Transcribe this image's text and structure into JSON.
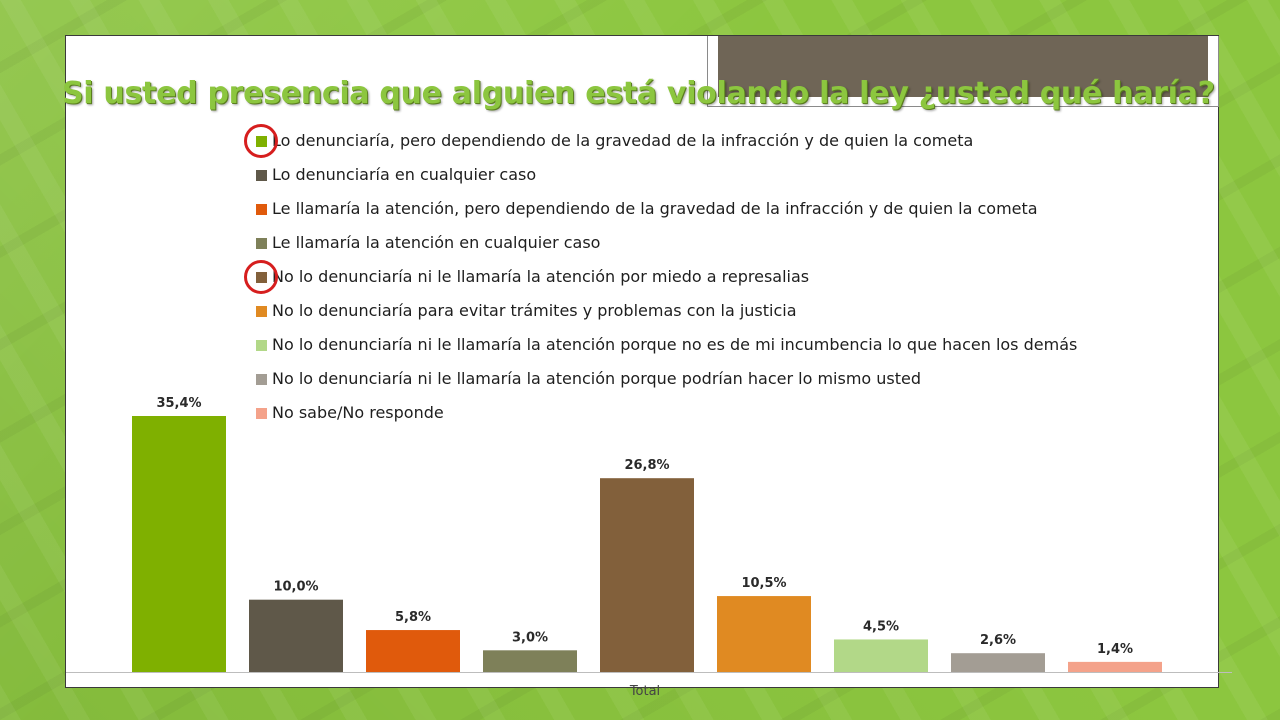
{
  "title": "Si usted presencia que alguien está violando la ley ¿usted qué haría?",
  "colors": {
    "background": "#8cc63f",
    "title": "#8cc63f",
    "annotation_circle": "#d61e1e"
  },
  "annotations": {
    "circled_legend_items": [
      0,
      4
    ]
  },
  "chart_data": {
    "type": "bar",
    "xlabel": "Total",
    "ylabel": "",
    "ylim": [
      0,
      40
    ],
    "categories": [
      "Total"
    ],
    "legend_position": "top",
    "series": [
      {
        "name": "Lo denunciaría, pero dependiendo de la gravedad de la infracción y de quien la cometa",
        "value": 35.4,
        "label": "35,4%",
        "color": "#7fb000"
      },
      {
        "name": "Lo denunciaría en cualquier caso",
        "value": 10.0,
        "label": "10,0%",
        "color": "#5f5849"
      },
      {
        "name": "Le llamaría la atención, pero dependiendo de la gravedad de la infracción y de quien la cometa",
        "value": 5.8,
        "label": "5,8%",
        "color": "#e05a0c"
      },
      {
        "name": "Le llamaría la atención en cualquier caso",
        "value": 3.0,
        "label": "3,0%",
        "color": "#7e8059"
      },
      {
        "name": "No lo denunciaría ni le llamaría la atención por miedo a represalias",
        "value": 26.8,
        "label": "26,8%",
        "color": "#82603b"
      },
      {
        "name": "No lo denunciaría para evitar trámites y problemas con la justicia",
        "value": 10.5,
        "label": "10,5%",
        "color": "#e08a22"
      },
      {
        "name": "No lo denunciaría ni le llamaría la atención porque no es de mi incumbencia lo que hacen los demás",
        "value": 4.5,
        "label": "4,5%",
        "color": "#b2d888"
      },
      {
        "name": "No lo denunciaría ni le llamaría la atención porque podrían hacer lo mismo usted",
        "value": 2.6,
        "label": "2,6%",
        "color": "#a39d94"
      },
      {
        "name": "No sabe/No responde",
        "value": 1.4,
        "label": "1,4%",
        "color": "#f4a28a"
      }
    ]
  }
}
